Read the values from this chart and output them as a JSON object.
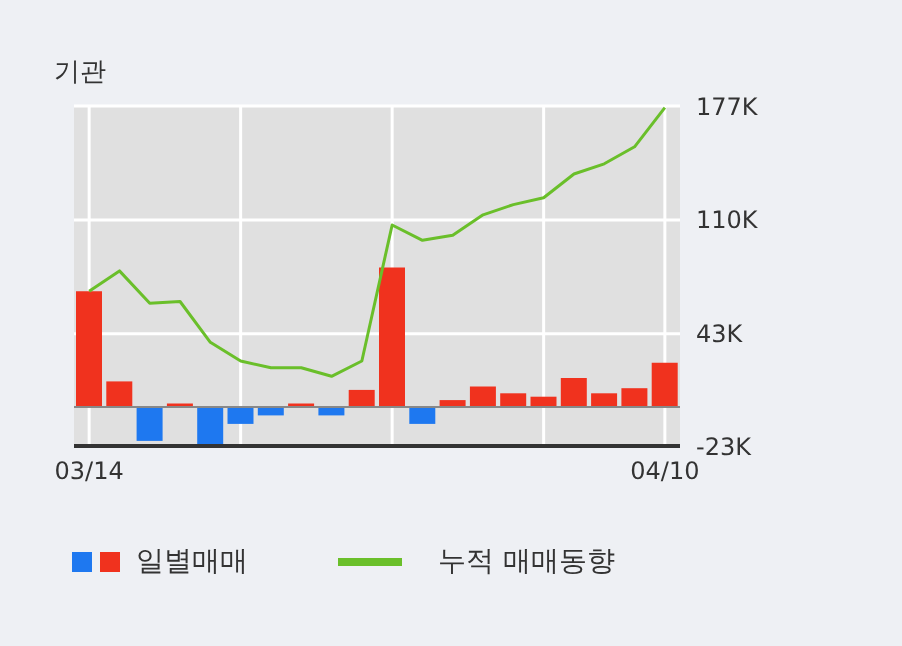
{
  "chart_data": {
    "type": "bar",
    "title": "기관",
    "categories": [
      "03/14",
      null,
      null,
      null,
      null,
      null,
      null,
      null,
      null,
      null,
      null,
      null,
      null,
      null,
      null,
      null,
      null,
      null,
      null,
      "04/10"
    ],
    "series": [
      {
        "name": "일별매매",
        "colors": [
          "#f0321e",
          "#f0321e",
          "#1e78f0",
          "#f0321e",
          "#1e78f0",
          "#1e78f0",
          "#1e78f0",
          "#f0321e",
          "#1e78f0",
          "#f0321e",
          "#f0321e",
          "#1e78f0",
          "#f0321e",
          "#f0321e",
          "#f0321e",
          "#f0321e",
          "#f0321e",
          "#f0321e",
          "#f0321e",
          "#f0321e"
        ],
        "values": [
          68,
          15,
          -20,
          2,
          -22,
          -10,
          -5,
          2,
          -5,
          10,
          82,
          -10,
          4,
          12,
          8,
          6,
          17,
          8,
          11,
          26
        ]
      },
      {
        "name": "누적 매매동향",
        "type": "line",
        "color": "#6abf2a",
        "values": [
          68,
          80,
          61,
          62,
          38,
          27,
          23,
          23,
          18,
          27,
          107,
          98,
          101,
          113,
          119,
          123,
          137,
          143,
          153,
          176
        ]
      }
    ],
    "ylim": [
      -23,
      177
    ],
    "yticks": [
      {
        "value": -23,
        "label": "-23K"
      },
      {
        "value": 43,
        "label": "43K"
      },
      {
        "value": 110,
        "label": "110K"
      },
      {
        "value": 177,
        "label": "177K"
      }
    ],
    "ref_lines": [
      {
        "axis": "y",
        "value": 0,
        "color": "#888888"
      }
    ],
    "grid": true,
    "legend": "bottom",
    "marker": "none",
    "line_style": "solid"
  }
}
